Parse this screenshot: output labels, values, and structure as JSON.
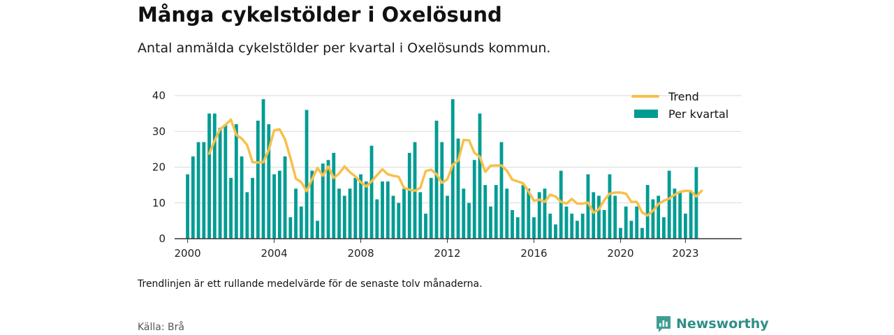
{
  "header": {
    "title": "Många cykelstölder i Oxelösund",
    "subtitle": "Antal anmälda cykelstölder per kvartal i Oxelösunds kommun."
  },
  "footer": {
    "note": "Trendlinjen är ett rullande medelvärde för de senaste tolv månaderna.",
    "source": "Källa: Brå",
    "brand": "Newsworthy",
    "brand_icon": "bar-chart-logo-icon"
  },
  "colors": {
    "bars": "#009c93",
    "trend": "#f7c04a",
    "grid": "#d9d9d9",
    "axis": "#333333",
    "brand": "#2e8f84"
  },
  "chart_data": {
    "type": "bar",
    "x_start_year": 2000,
    "periods_per_year": 4,
    "ylim": [
      0,
      40
    ],
    "yticks": [
      0,
      10,
      20,
      30,
      40
    ],
    "xticks": [
      2000,
      2004,
      2008,
      2012,
      2016,
      2020,
      2023
    ],
    "xlim": [
      1999.4,
      2025.6
    ],
    "grid": true,
    "legend_position": "top-right",
    "series": [
      {
        "name": "Per kvartal",
        "type": "bar",
        "values": [
          18,
          23,
          27,
          27,
          35,
          35,
          31,
          32,
          17,
          32,
          23,
          13,
          17,
          33,
          39,
          32,
          18,
          19,
          23,
          6,
          14,
          9,
          36,
          19,
          5,
          21,
          22,
          24,
          14,
          12,
          14,
          17,
          18,
          16,
          26,
          11,
          16,
          16,
          12,
          10,
          14,
          24,
          27,
          13,
          7,
          17,
          33,
          27,
          12,
          39,
          28,
          14,
          10,
          22,
          35,
          15,
          9,
          15,
          27,
          14,
          8,
          6,
          15,
          14,
          6,
          13,
          14,
          7,
          4,
          19,
          9,
          7,
          5,
          7,
          18,
          13,
          12,
          8,
          18,
          12,
          3,
          9,
          5,
          9,
          3,
          15,
          11,
          12,
          6,
          19,
          14,
          13,
          7,
          13,
          20
        ]
      },
      {
        "name": "Trend",
        "type": "line",
        "start_index": 4,
        "values": [
          23.8,
          27.4,
          30.6,
          31.8,
          33.3,
          29.0,
          28.0,
          26.2,
          21.4,
          21.3,
          21.4,
          24.8,
          30.3,
          30.6,
          27.8,
          22.6,
          16.8,
          15.8,
          13.3,
          16.6,
          19.8,
          17.6,
          20.2,
          17.0,
          18.2,
          20.2,
          18.6,
          17.4,
          15.8,
          14.6,
          16.0,
          17.8,
          19.4,
          18.0,
          17.6,
          17.3,
          14.2,
          13.7,
          13.4,
          14.2,
          18.9,
          19.3,
          18.0,
          15.6,
          16.6,
          20.7,
          21.8,
          27.6,
          27.5,
          24.0,
          22.9,
          18.7,
          20.4,
          20.5,
          20.5,
          19.0,
          16.5,
          16.0,
          15.5,
          13.2,
          10.6,
          10.9,
          10.3,
          12.3,
          11.8,
          10.3,
          9.8,
          11.1,
          9.8,
          9.8,
          10.1,
          7.3,
          8.2,
          10.8,
          12.6,
          12.9,
          12.9,
          12.6,
          10.3,
          10.3,
          7.3,
          6.5,
          7.8,
          9.7,
          10.6,
          11.2,
          12.3,
          13.1,
          13.4,
          13.3,
          11.8,
          13.4
        ]
      }
    ]
  }
}
